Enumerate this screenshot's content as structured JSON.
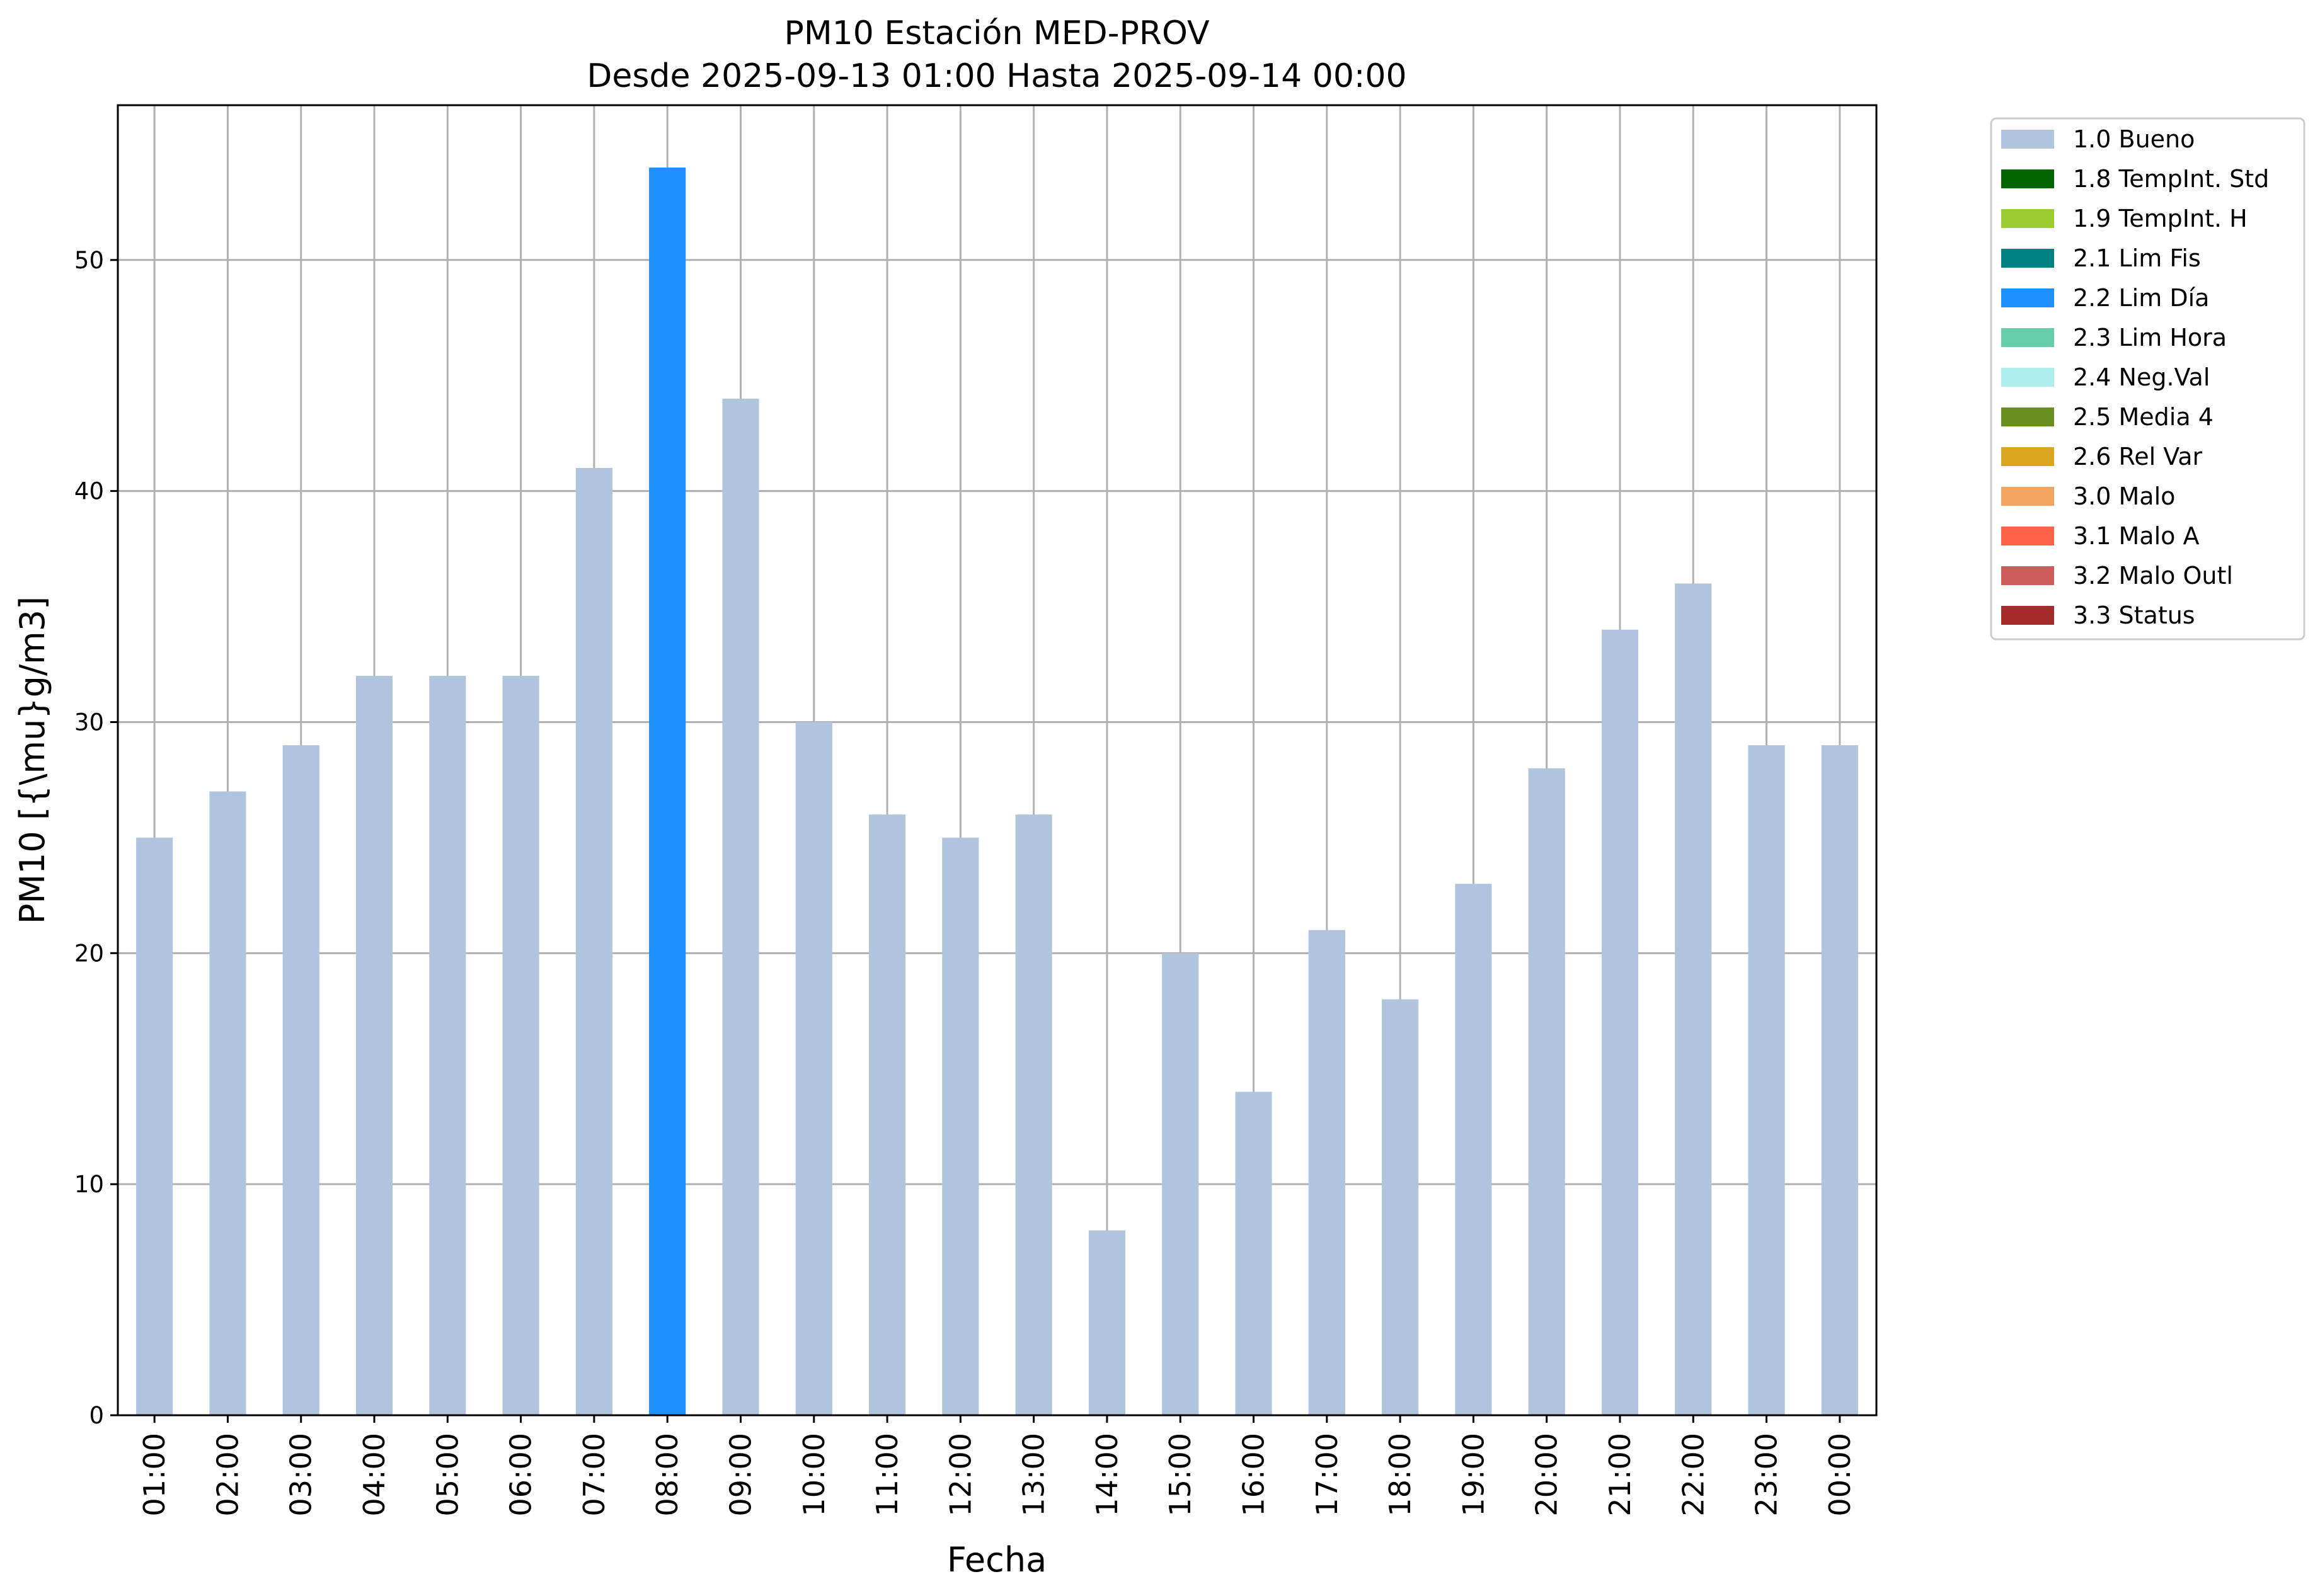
{
  "chart_data": {
    "type": "bar",
    "title": "PM10 Estación MED-PROV",
    "subtitle": "Desde 2025-09-13 01:00 Hasta 2025-09-14 00:00",
    "xlabel": "Fecha",
    "ylabel": "PM10 [{\\mu}g/m3]",
    "ylim": [
      0,
      56.7
    ],
    "yticks": [
      0,
      10,
      20,
      30,
      40,
      50
    ],
    "grid": true,
    "legend_position": "outside-top-right",
    "categories": [
      "01:00",
      "02:00",
      "03:00",
      "04:00",
      "05:00",
      "06:00",
      "07:00",
      "08:00",
      "09:00",
      "10:00",
      "11:00",
      "12:00",
      "13:00",
      "14:00",
      "15:00",
      "16:00",
      "17:00",
      "18:00",
      "19:00",
      "20:00",
      "21:00",
      "22:00",
      "23:00",
      "00:00"
    ],
    "values": [
      25,
      27,
      29,
      32,
      32,
      32,
      41,
      54,
      44,
      30,
      26,
      25,
      26,
      8,
      20,
      14,
      21,
      18,
      23,
      28,
      34,
      36,
      29,
      29
    ],
    "flags": [
      "1.0 Bueno",
      "1.0 Bueno",
      "1.0 Bueno",
      "1.0 Bueno",
      "1.0 Bueno",
      "1.0 Bueno",
      "1.0 Bueno",
      "2.2 Lim Día",
      "1.0 Bueno",
      "1.0 Bueno",
      "1.0 Bueno",
      "1.0 Bueno",
      "1.0 Bueno",
      "1.0 Bueno",
      "1.0 Bueno",
      "1.0 Bueno",
      "1.0 Bueno",
      "1.0 Bueno",
      "1.0 Bueno",
      "1.0 Bueno",
      "1.0 Bueno",
      "1.0 Bueno",
      "1.0 Bueno",
      "1.0 Bueno"
    ],
    "legend": [
      {
        "label": "1.0 Bueno",
        "color": "#b0c4de"
      },
      {
        "label": "1.8 TempInt. Std",
        "color": "#006400"
      },
      {
        "label": "1.9 TempInt. H",
        "color": "#9acd32"
      },
      {
        "label": "2.1 Lim Fis",
        "color": "#008080"
      },
      {
        "label": "2.2 Lim Día",
        "color": "#1e90ff"
      },
      {
        "label": "2.3 Lim Hora",
        "color": "#66cdaa"
      },
      {
        "label": "2.4 Neg.Val",
        "color": "#afeeee"
      },
      {
        "label": "2.5 Media 4",
        "color": "#6b8e23"
      },
      {
        "label": "2.6 Rel Var",
        "color": "#daa520"
      },
      {
        "label": "3.0 Malo",
        "color": "#f4a460"
      },
      {
        "label": "3.1 Malo A",
        "color": "#ff6347"
      },
      {
        "label": "3.2 Malo Outl",
        "color": "#cd5c5c"
      },
      {
        "label": "3.3 Status",
        "color": "#a52a2a"
      }
    ]
  }
}
